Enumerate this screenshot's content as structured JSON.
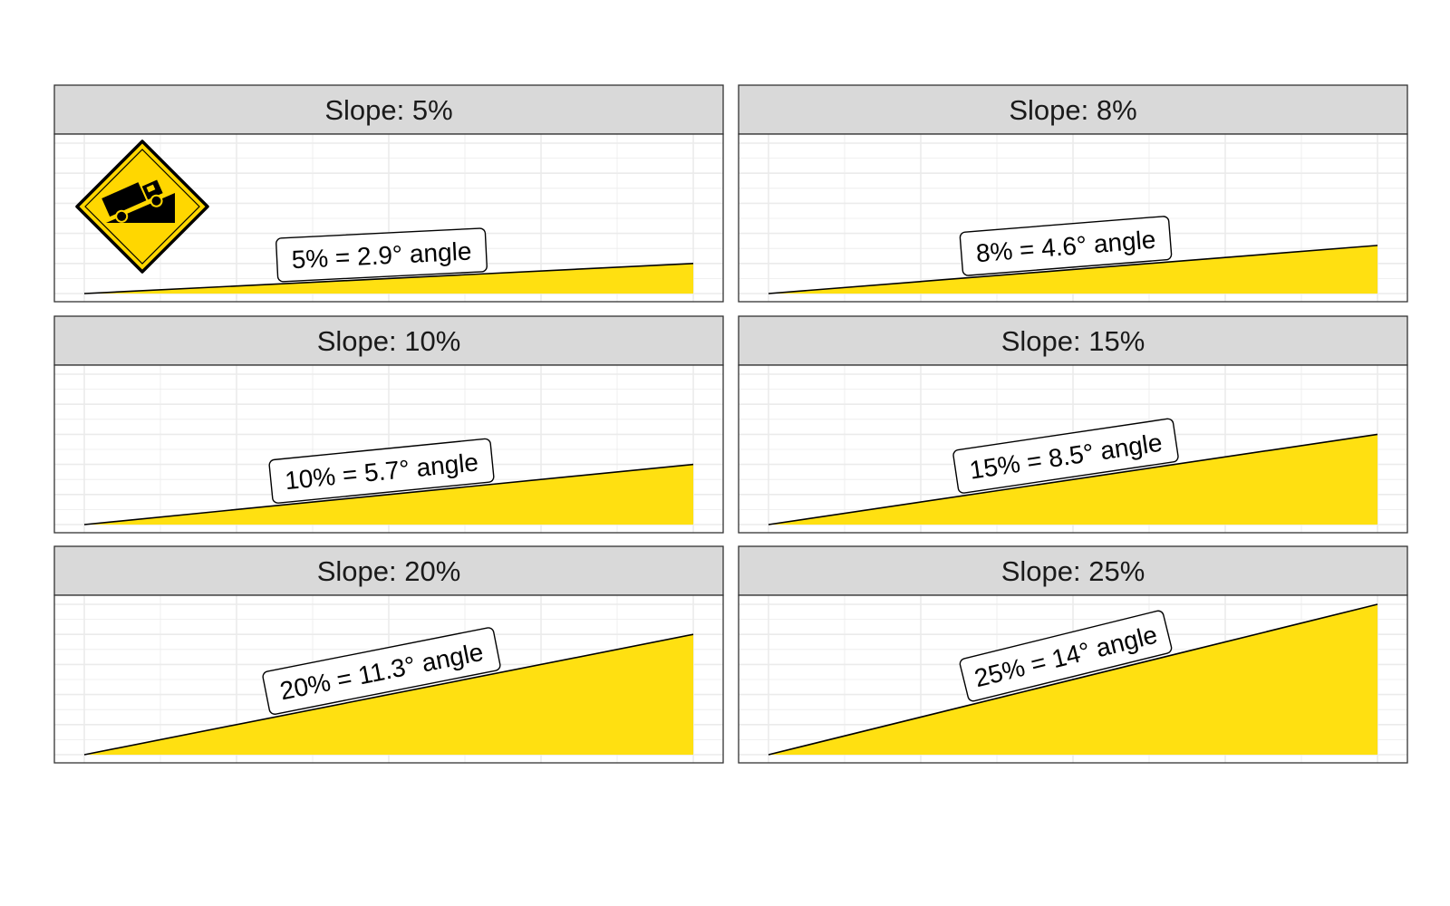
{
  "chart_data": {
    "type": "area",
    "facet_prefix": "Slope: ",
    "x_range": [
      0,
      100
    ],
    "y_range": [
      0,
      25
    ],
    "grid": true,
    "colors": {
      "fill": "#FFE011",
      "outline": "#000000",
      "strip_bg": "#D9D9D9",
      "grid": "#EBEBEB",
      "sign_yellow": "#FFD700"
    },
    "panels": [
      {
        "strip": "Slope: 5%",
        "slope_pct": 5,
        "angle_deg": 2.9,
        "label": "5% = 2.9° angle",
        "x": [
          0,
          100
        ],
        "y": [
          0,
          5
        ]
      },
      {
        "strip": "Slope: 8%",
        "slope_pct": 8,
        "angle_deg": 4.6,
        "label": "8% = 4.6° angle",
        "x": [
          0,
          100
        ],
        "y": [
          0,
          8
        ]
      },
      {
        "strip": "Slope: 10%",
        "slope_pct": 10,
        "angle_deg": 5.7,
        "label": "10% = 5.7° angle",
        "x": [
          0,
          100
        ],
        "y": [
          0,
          10
        ]
      },
      {
        "strip": "Slope: 15%",
        "slope_pct": 15,
        "angle_deg": 8.5,
        "label": "15% = 8.5° angle",
        "x": [
          0,
          100
        ],
        "y": [
          0,
          15
        ]
      },
      {
        "strip": "Slope: 20%",
        "slope_pct": 20,
        "angle_deg": 11.3,
        "label": "20% = 11.3° angle",
        "x": [
          0,
          100
        ],
        "y": [
          0,
          20
        ]
      },
      {
        "strip": "Slope: 25%",
        "slope_pct": 25,
        "angle_deg": 14,
        "label": "25% = 14° angle",
        "x": [
          0,
          100
        ],
        "y": [
          0,
          25
        ]
      }
    ],
    "sign_icon": "truck-on-slope-warning-sign-icon"
  }
}
